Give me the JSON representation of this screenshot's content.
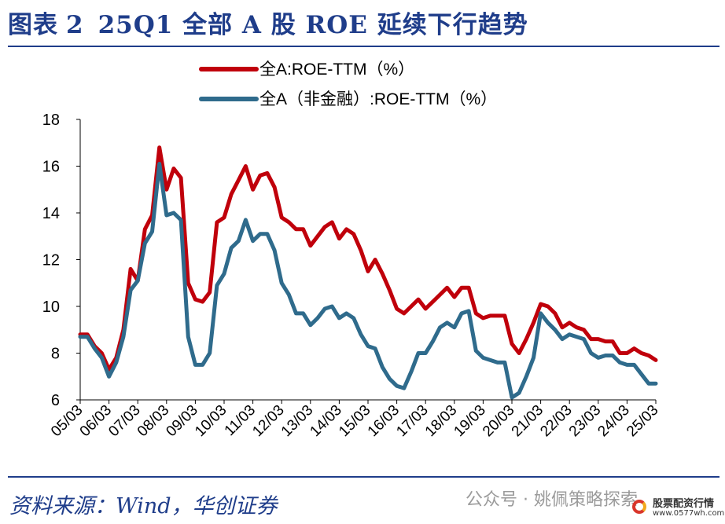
{
  "figure": {
    "label": "图表",
    "number": "2",
    "title": "25Q1 全部 A 股 ROE 延续下行趋势"
  },
  "source": "资料来源：Wind，华创证券",
  "watermark": {
    "text": "公众号 · 姚佩策略探索",
    "logo_line1": "股票配资行情",
    "logo_line2": "www.0577wh.com"
  },
  "chart_data": {
    "type": "line",
    "x": [
      "05/03",
      "05/06",
      "05/09",
      "05/12",
      "06/03",
      "06/06",
      "06/09",
      "06/12",
      "07/03",
      "07/06",
      "07/09",
      "07/12",
      "08/03",
      "08/06",
      "08/09",
      "08/12",
      "09/03",
      "09/06",
      "09/09",
      "09/12",
      "10/03",
      "10/06",
      "10/09",
      "10/12",
      "11/03",
      "11/06",
      "11/09",
      "11/12",
      "12/03",
      "12/06",
      "12/09",
      "12/12",
      "13/03",
      "13/06",
      "13/09",
      "13/12",
      "14/03",
      "14/06",
      "14/09",
      "14/12",
      "15/03",
      "15/06",
      "15/09",
      "15/12",
      "16/03",
      "16/06",
      "16/09",
      "16/12",
      "17/03",
      "17/06",
      "17/09",
      "17/12",
      "18/03",
      "18/06",
      "18/09",
      "18/12",
      "19/03",
      "19/06",
      "19/09",
      "19/12",
      "20/03",
      "20/06",
      "20/09",
      "20/12",
      "21/03",
      "21/06",
      "21/09",
      "21/12",
      "22/03",
      "22/06",
      "22/09",
      "22/12",
      "23/03",
      "23/06",
      "23/09",
      "23/12",
      "24/03",
      "24/06",
      "24/09",
      "24/12",
      "25/03"
    ],
    "x_ticks": [
      "05/03",
      "06/03",
      "07/03",
      "08/03",
      "09/03",
      "10/03",
      "11/03",
      "12/03",
      "13/03",
      "14/03",
      "15/03",
      "16/03",
      "17/03",
      "18/03",
      "19/03",
      "20/03",
      "21/03",
      "22/03",
      "23/03",
      "24/03",
      "25/03"
    ],
    "ylim": [
      6,
      18
    ],
    "y_ticks": [
      6,
      8,
      10,
      12,
      14,
      16,
      18
    ],
    "legend_position": "top",
    "series": [
      {
        "name": "全A:ROE-TTM（%）",
        "color": "#c0000b",
        "values": [
          8.8,
          8.8,
          8.3,
          8.0,
          7.3,
          7.8,
          9.0,
          11.6,
          11.1,
          13.3,
          13.9,
          16.8,
          15.0,
          15.9,
          15.5,
          11.0,
          10.3,
          10.2,
          10.6,
          13.6,
          13.8,
          14.8,
          15.4,
          16.0,
          15.0,
          15.6,
          15.7,
          15.1,
          13.8,
          13.6,
          13.3,
          13.3,
          12.6,
          13.0,
          13.4,
          13.6,
          12.9,
          13.3,
          13.1,
          12.4,
          11.5,
          12.0,
          11.4,
          10.7,
          9.9,
          9.7,
          10.0,
          10.3,
          9.9,
          10.2,
          10.5,
          10.8,
          10.4,
          10.8,
          10.8,
          9.7,
          9.5,
          9.6,
          9.6,
          9.6,
          8.4,
          8.0,
          8.6,
          9.3,
          10.1,
          10.0,
          9.7,
          9.1,
          9.3,
          9.1,
          9.0,
          8.6,
          8.6,
          8.5,
          8.5,
          8.0,
          8.0,
          8.2,
          8.0,
          7.9,
          7.7
        ]
      },
      {
        "name": "全A（非金融）:ROE-TTM（%）",
        "color": "#2f6b8c",
        "values": [
          8.7,
          8.7,
          8.2,
          7.8,
          7.0,
          7.6,
          8.7,
          10.7,
          11.1,
          12.7,
          13.2,
          16.1,
          13.9,
          14.0,
          13.7,
          8.7,
          7.5,
          7.5,
          8.0,
          10.9,
          11.4,
          12.5,
          12.8,
          13.7,
          12.8,
          13.1,
          13.1,
          12.4,
          11.0,
          10.5,
          9.7,
          9.7,
          9.2,
          9.5,
          9.9,
          10.0,
          9.5,
          9.7,
          9.5,
          8.8,
          8.3,
          8.2,
          7.4,
          6.9,
          6.6,
          6.5,
          7.2,
          8.0,
          8.0,
          8.5,
          9.1,
          9.3,
          9.1,
          9.7,
          9.8,
          8.1,
          7.8,
          7.7,
          7.6,
          7.6,
          6.1,
          6.3,
          7.0,
          7.8,
          9.7,
          9.3,
          9.0,
          8.6,
          8.8,
          8.7,
          8.6,
          8.0,
          7.8,
          7.9,
          7.9,
          7.6,
          7.5,
          7.5,
          7.1,
          6.7,
          6.7
        ]
      }
    ]
  }
}
